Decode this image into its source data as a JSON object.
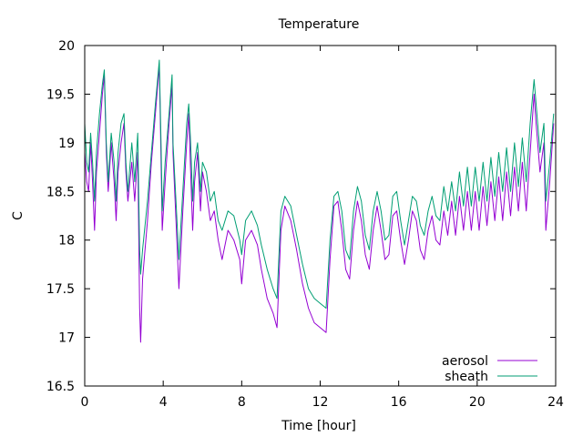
{
  "chart_data": {
    "type": "line",
    "title": "Temperature",
    "xlabel": "Time [hour]",
    "ylabel": "C",
    "xlim": [
      0,
      24
    ],
    "ylim": [
      16.5,
      20
    ],
    "xticks": [
      "0",
      "4",
      "8",
      "12",
      "16",
      "20",
      "24"
    ],
    "yticks": [
      "16.5",
      "17",
      "17.5",
      "18",
      "18.5",
      "19",
      "19.5",
      "20"
    ],
    "grid": false,
    "legend_position": "bottom-right",
    "series": [
      {
        "name": "aerosol",
        "color": "#9400d3",
        "points": [
          [
            0,
            18.9
          ],
          [
            0.1,
            18.6
          ],
          [
            0.2,
            18.5
          ],
          [
            0.3,
            19.0
          ],
          [
            0.4,
            18.6
          ],
          [
            0.5,
            18.1
          ],
          [
            0.6,
            18.7
          ],
          [
            0.75,
            19.1
          ],
          [
            0.9,
            19.5
          ],
          [
            1.0,
            19.7
          ],
          [
            1.1,
            18.9
          ],
          [
            1.2,
            18.5
          ],
          [
            1.35,
            19.0
          ],
          [
            1.5,
            18.6
          ],
          [
            1.6,
            18.2
          ],
          [
            1.7,
            18.7
          ],
          [
            1.85,
            19.0
          ],
          [
            2.0,
            19.2
          ],
          [
            2.1,
            18.7
          ],
          [
            2.2,
            18.4
          ],
          [
            2.4,
            18.8
          ],
          [
            2.55,
            18.4
          ],
          [
            2.7,
            18.9
          ],
          [
            2.8,
            17.3
          ],
          [
            2.85,
            16.95
          ],
          [
            2.95,
            17.6
          ],
          [
            3.2,
            18.2
          ],
          [
            3.4,
            18.8
          ],
          [
            3.6,
            19.3
          ],
          [
            3.8,
            19.8
          ],
          [
            3.9,
            18.7
          ],
          [
            3.95,
            18.1
          ],
          [
            4.1,
            18.6
          ],
          [
            4.3,
            19.2
          ],
          [
            4.45,
            19.6
          ],
          [
            4.5,
            18.9
          ],
          [
            4.65,
            18.2
          ],
          [
            4.8,
            17.5
          ],
          [
            5.0,
            18.3
          ],
          [
            5.2,
            19.0
          ],
          [
            5.3,
            19.3
          ],
          [
            5.4,
            18.7
          ],
          [
            5.5,
            18.1
          ],
          [
            5.6,
            18.6
          ],
          [
            5.75,
            18.9
          ],
          [
            5.9,
            18.3
          ],
          [
            6.0,
            18.7
          ],
          [
            6.2,
            18.5
          ],
          [
            6.4,
            18.2
          ],
          [
            6.6,
            18.3
          ],
          [
            6.8,
            18.0
          ],
          [
            7.0,
            17.8
          ],
          [
            7.3,
            18.1
          ],
          [
            7.6,
            18.0
          ],
          [
            7.9,
            17.8
          ],
          [
            8.0,
            17.55
          ],
          [
            8.2,
            18.0
          ],
          [
            8.5,
            18.1
          ],
          [
            8.8,
            17.95
          ],
          [
            9.0,
            17.7
          ],
          [
            9.3,
            17.4
          ],
          [
            9.6,
            17.25
          ],
          [
            9.8,
            17.1
          ],
          [
            10.0,
            18.1
          ],
          [
            10.2,
            18.35
          ],
          [
            10.5,
            18.2
          ],
          [
            10.8,
            17.9
          ],
          [
            11.1,
            17.55
          ],
          [
            11.4,
            17.3
          ],
          [
            11.7,
            17.15
          ],
          [
            12.0,
            17.1
          ],
          [
            12.3,
            17.05
          ],
          [
            12.5,
            17.8
          ],
          [
            12.7,
            18.35
          ],
          [
            12.9,
            18.4
          ],
          [
            13.1,
            18.1
          ],
          [
            13.3,
            17.7
          ],
          [
            13.5,
            17.6
          ],
          [
            13.7,
            18.1
          ],
          [
            13.9,
            18.4
          ],
          [
            14.1,
            18.2
          ],
          [
            14.3,
            17.85
          ],
          [
            14.5,
            17.7
          ],
          [
            14.7,
            18.1
          ],
          [
            14.9,
            18.35
          ],
          [
            15.1,
            18.1
          ],
          [
            15.3,
            17.8
          ],
          [
            15.5,
            17.85
          ],
          [
            15.7,
            18.25
          ],
          [
            15.9,
            18.3
          ],
          [
            16.1,
            18.0
          ],
          [
            16.3,
            17.75
          ],
          [
            16.5,
            18.0
          ],
          [
            16.7,
            18.3
          ],
          [
            16.9,
            18.2
          ],
          [
            17.1,
            17.9
          ],
          [
            17.3,
            17.8
          ],
          [
            17.5,
            18.1
          ],
          [
            17.7,
            18.25
          ],
          [
            17.9,
            18.0
          ],
          [
            18.1,
            17.95
          ],
          [
            18.3,
            18.3
          ],
          [
            18.5,
            18.05
          ],
          [
            18.7,
            18.4
          ],
          [
            18.9,
            18.05
          ],
          [
            19.1,
            18.45
          ],
          [
            19.3,
            18.1
          ],
          [
            19.5,
            18.5
          ],
          [
            19.7,
            18.1
          ],
          [
            19.9,
            18.5
          ],
          [
            20.1,
            18.1
          ],
          [
            20.3,
            18.55
          ],
          [
            20.5,
            18.15
          ],
          [
            20.7,
            18.6
          ],
          [
            20.9,
            18.2
          ],
          [
            21.1,
            18.65
          ],
          [
            21.3,
            18.2
          ],
          [
            21.5,
            18.7
          ],
          [
            21.7,
            18.25
          ],
          [
            21.9,
            18.75
          ],
          [
            22.1,
            18.3
          ],
          [
            22.3,
            18.8
          ],
          [
            22.5,
            18.3
          ],
          [
            22.7,
            18.9
          ],
          [
            22.9,
            19.5
          ],
          [
            23.0,
            19.2
          ],
          [
            23.2,
            18.7
          ],
          [
            23.4,
            19.0
          ],
          [
            23.5,
            18.1
          ],
          [
            23.7,
            18.6
          ],
          [
            23.9,
            19.2
          ]
        ]
      },
      {
        "name": "sheath",
        "color": "#009e73",
        "points": [
          [
            0,
            19.2
          ],
          [
            0.1,
            18.8
          ],
          [
            0.2,
            18.7
          ],
          [
            0.3,
            19.1
          ],
          [
            0.4,
            18.8
          ],
          [
            0.5,
            18.4
          ],
          [
            0.6,
            18.9
          ],
          [
            0.75,
            19.3
          ],
          [
            0.9,
            19.6
          ],
          [
            1.0,
            19.75
          ],
          [
            1.1,
            19.0
          ],
          [
            1.2,
            18.6
          ],
          [
            1.35,
            19.1
          ],
          [
            1.5,
            18.8
          ],
          [
            1.6,
            18.4
          ],
          [
            1.7,
            18.9
          ],
          [
            1.85,
            19.2
          ],
          [
            2.0,
            19.3
          ],
          [
            2.1,
            18.8
          ],
          [
            2.2,
            18.5
          ],
          [
            2.4,
            19.0
          ],
          [
            2.55,
            18.6
          ],
          [
            2.7,
            19.1
          ],
          [
            2.8,
            17.9
          ],
          [
            2.85,
            17.65
          ],
          [
            2.95,
            17.9
          ],
          [
            3.2,
            18.4
          ],
          [
            3.4,
            18.9
          ],
          [
            3.6,
            19.4
          ],
          [
            3.8,
            19.85
          ],
          [
            3.9,
            18.9
          ],
          [
            3.95,
            18.3
          ],
          [
            4.1,
            18.8
          ],
          [
            4.3,
            19.3
          ],
          [
            4.45,
            19.7
          ],
          [
            4.5,
            19.0
          ],
          [
            4.65,
            18.4
          ],
          [
            4.8,
            17.8
          ],
          [
            5.0,
            18.5
          ],
          [
            5.2,
            19.2
          ],
          [
            5.3,
            19.4
          ],
          [
            5.4,
            19.0
          ],
          [
            5.5,
            18.4
          ],
          [
            5.6,
            18.8
          ],
          [
            5.75,
            19.0
          ],
          [
            5.9,
            18.5
          ],
          [
            6.0,
            18.8
          ],
          [
            6.2,
            18.7
          ],
          [
            6.4,
            18.4
          ],
          [
            6.6,
            18.5
          ],
          [
            6.8,
            18.2
          ],
          [
            7.0,
            18.1
          ],
          [
            7.3,
            18.3
          ],
          [
            7.6,
            18.25
          ],
          [
            7.9,
            18.0
          ],
          [
            8.0,
            17.85
          ],
          [
            8.2,
            18.2
          ],
          [
            8.5,
            18.3
          ],
          [
            8.8,
            18.15
          ],
          [
            9.0,
            17.95
          ],
          [
            9.3,
            17.7
          ],
          [
            9.6,
            17.5
          ],
          [
            9.8,
            17.4
          ],
          [
            10.0,
            18.3
          ],
          [
            10.2,
            18.45
          ],
          [
            10.5,
            18.35
          ],
          [
            10.8,
            18.05
          ],
          [
            11.1,
            17.75
          ],
          [
            11.4,
            17.5
          ],
          [
            11.7,
            17.4
          ],
          [
            12.0,
            17.35
          ],
          [
            12.3,
            17.3
          ],
          [
            12.5,
            18.0
          ],
          [
            12.7,
            18.45
          ],
          [
            12.9,
            18.5
          ],
          [
            13.1,
            18.3
          ],
          [
            13.3,
            17.9
          ],
          [
            13.5,
            17.8
          ],
          [
            13.7,
            18.3
          ],
          [
            13.9,
            18.55
          ],
          [
            14.1,
            18.4
          ],
          [
            14.3,
            18.05
          ],
          [
            14.5,
            17.9
          ],
          [
            14.7,
            18.3
          ],
          [
            14.9,
            18.5
          ],
          [
            15.1,
            18.3
          ],
          [
            15.3,
            18.0
          ],
          [
            15.5,
            18.05
          ],
          [
            15.7,
            18.45
          ],
          [
            15.9,
            18.5
          ],
          [
            16.1,
            18.2
          ],
          [
            16.3,
            17.95
          ],
          [
            16.5,
            18.2
          ],
          [
            16.7,
            18.45
          ],
          [
            16.9,
            18.4
          ],
          [
            17.1,
            18.15
          ],
          [
            17.3,
            18.05
          ],
          [
            17.5,
            18.3
          ],
          [
            17.7,
            18.45
          ],
          [
            17.9,
            18.25
          ],
          [
            18.1,
            18.2
          ],
          [
            18.3,
            18.55
          ],
          [
            18.5,
            18.3
          ],
          [
            18.7,
            18.6
          ],
          [
            18.9,
            18.3
          ],
          [
            19.1,
            18.7
          ],
          [
            19.3,
            18.35
          ],
          [
            19.5,
            18.75
          ],
          [
            19.7,
            18.35
          ],
          [
            19.9,
            18.75
          ],
          [
            20.1,
            18.4
          ],
          [
            20.3,
            18.8
          ],
          [
            20.5,
            18.4
          ],
          [
            20.7,
            18.85
          ],
          [
            20.9,
            18.45
          ],
          [
            21.1,
            18.9
          ],
          [
            21.3,
            18.5
          ],
          [
            21.5,
            18.95
          ],
          [
            21.7,
            18.5
          ],
          [
            21.9,
            19.0
          ],
          [
            22.1,
            18.55
          ],
          [
            22.3,
            19.05
          ],
          [
            22.5,
            18.6
          ],
          [
            22.7,
            19.2
          ],
          [
            22.9,
            19.65
          ],
          [
            23.0,
            19.4
          ],
          [
            23.2,
            18.9
          ],
          [
            23.4,
            19.2
          ],
          [
            23.5,
            18.4
          ],
          [
            23.7,
            18.8
          ],
          [
            23.9,
            19.3
          ]
        ]
      }
    ]
  }
}
